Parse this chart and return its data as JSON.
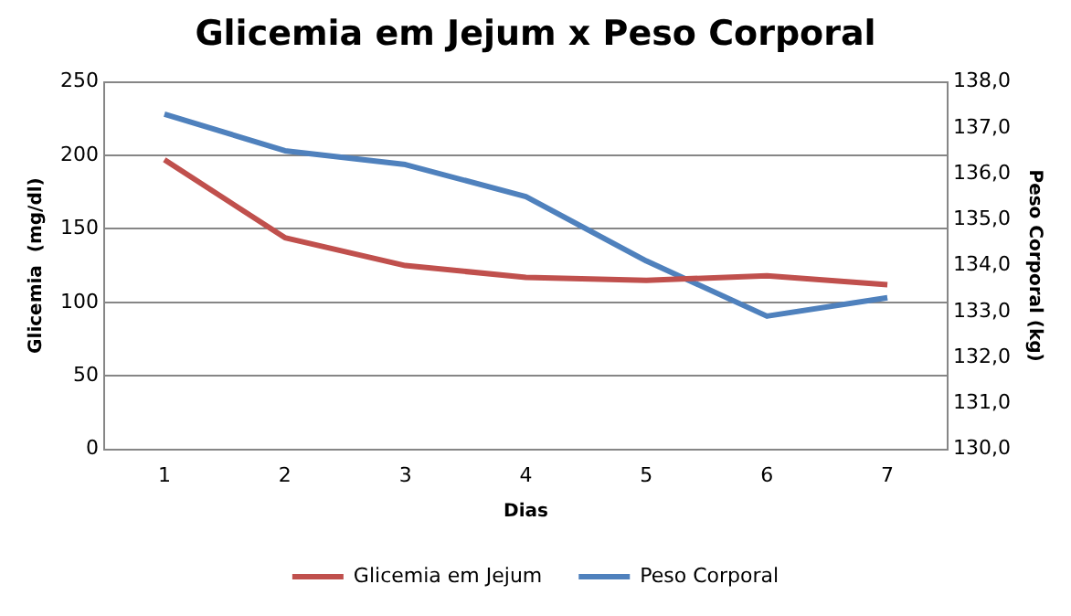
{
  "chart_data": {
    "type": "line",
    "title": "Glicemia em Jejum x Peso Corporal",
    "xlabel": "Dias",
    "ylabel": "Glicemia  (mg/dl)",
    "y2label": "Peso Corporal (kg)",
    "categories": [
      "1",
      "2",
      "3",
      "4",
      "5",
      "6",
      "7"
    ],
    "series": [
      {
        "name": "Glicemia em Jejum",
        "color": "#c0504d",
        "values": [
          197,
          144,
          125,
          117,
          115,
          118,
          112
        ]
      },
      {
        "name": "Peso Corporal",
        "color": "#4f81bd",
        "axis": "y2",
        "values": [
          137.3,
          136.5,
          136.2,
          135.5,
          134.1,
          132.9,
          133.3
        ]
      }
    ],
    "ylim": [
      0,
      250
    ],
    "yticks": [
      0,
      50,
      100,
      150,
      200,
      250
    ],
    "y2lim": [
      130,
      138
    ],
    "y2ticks": [
      {
        "value": 130,
        "label": "130,0"
      },
      {
        "value": 131,
        "label": "131,0"
      },
      {
        "value": 132,
        "label": "132,0"
      },
      {
        "value": 133,
        "label": "133,0"
      },
      {
        "value": 134,
        "label": "134,0"
      },
      {
        "value": 135,
        "label": "135,0"
      },
      {
        "value": 136,
        "label": "136,0"
      },
      {
        "value": 137,
        "label": "137,0"
      },
      {
        "value": 138,
        "label": "138,0"
      }
    ],
    "grid": "y",
    "legend": "bottom",
    "marker": "none",
    "line_style": "solid"
  }
}
